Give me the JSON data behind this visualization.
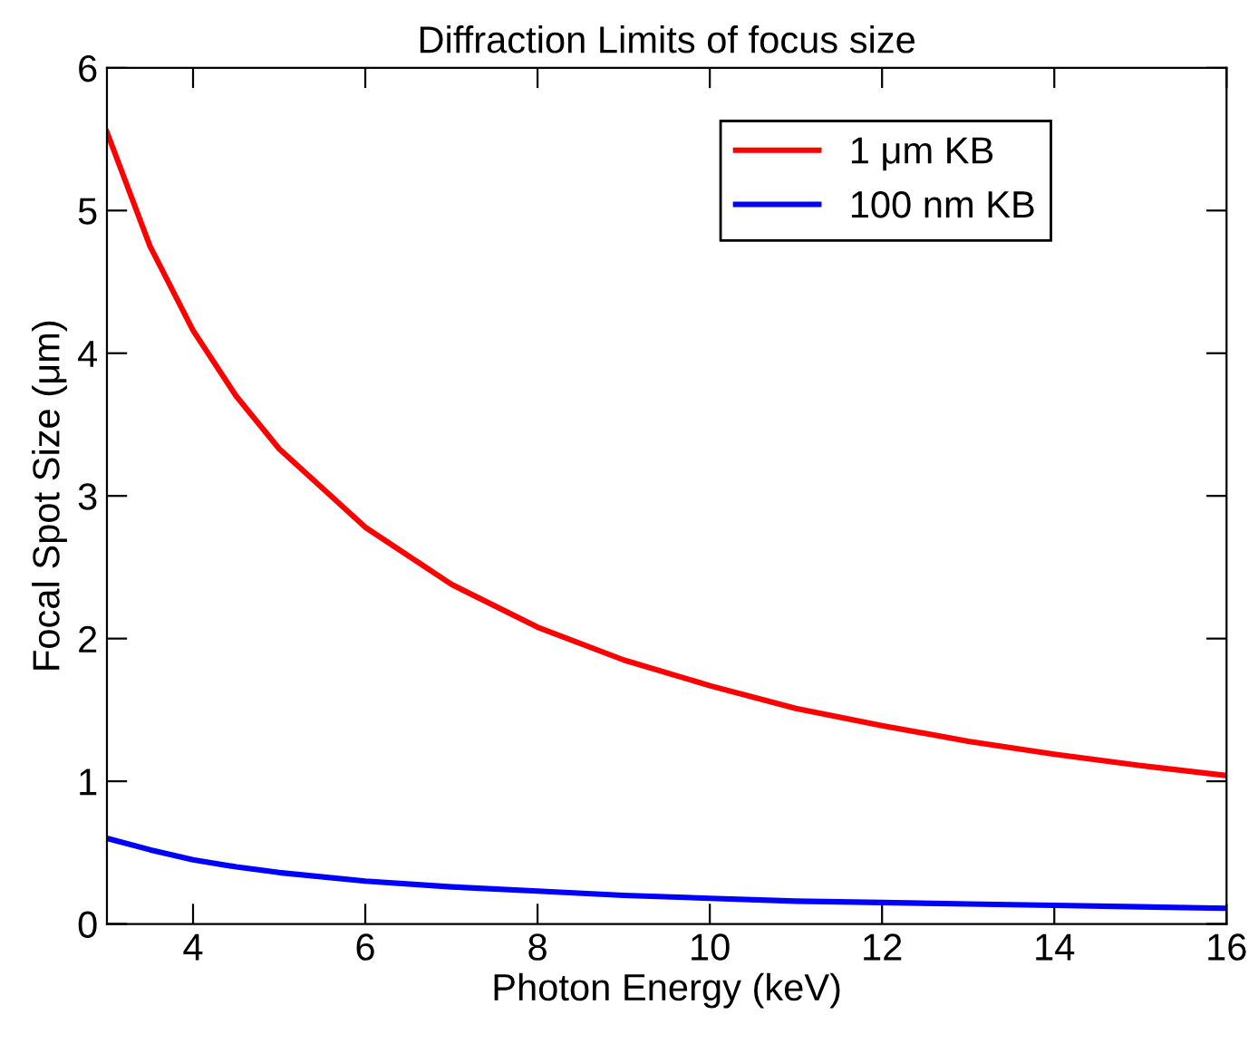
{
  "chart_data": {
    "type": "line",
    "title": "Diffraction Limits of focus size",
    "xlabel": "Photon Energy (keV)",
    "ylabel": "Focal Spot Size (μm)",
    "x": [
      3,
      3.5,
      4,
      4.5,
      5,
      6,
      7,
      8,
      9,
      10,
      11,
      12,
      13,
      14,
      15,
      16
    ],
    "series": [
      {
        "name": "1 μm KB",
        "color": "#ff0000",
        "values": [
          5.55,
          4.75,
          4.16,
          3.7,
          3.33,
          2.78,
          2.38,
          2.08,
          1.85,
          1.67,
          1.51,
          1.39,
          1.28,
          1.19,
          1.11,
          1.04
        ]
      },
      {
        "name": "100 nm KB",
        "color": "#0000ff",
        "values": [
          0.6,
          0.52,
          0.45,
          0.4,
          0.36,
          0.3,
          0.26,
          0.23,
          0.2,
          0.18,
          0.16,
          0.15,
          0.14,
          0.13,
          0.12,
          0.11
        ]
      }
    ],
    "xlim": [
      3,
      16
    ],
    "ylim": [
      0,
      6
    ],
    "xticks": [
      4,
      6,
      8,
      10,
      12,
      14,
      16
    ],
    "yticks": [
      0,
      1,
      2,
      3,
      4,
      5,
      6
    ],
    "grid": false,
    "legend": "top right",
    "marker": "none",
    "line_style": "solid"
  }
}
